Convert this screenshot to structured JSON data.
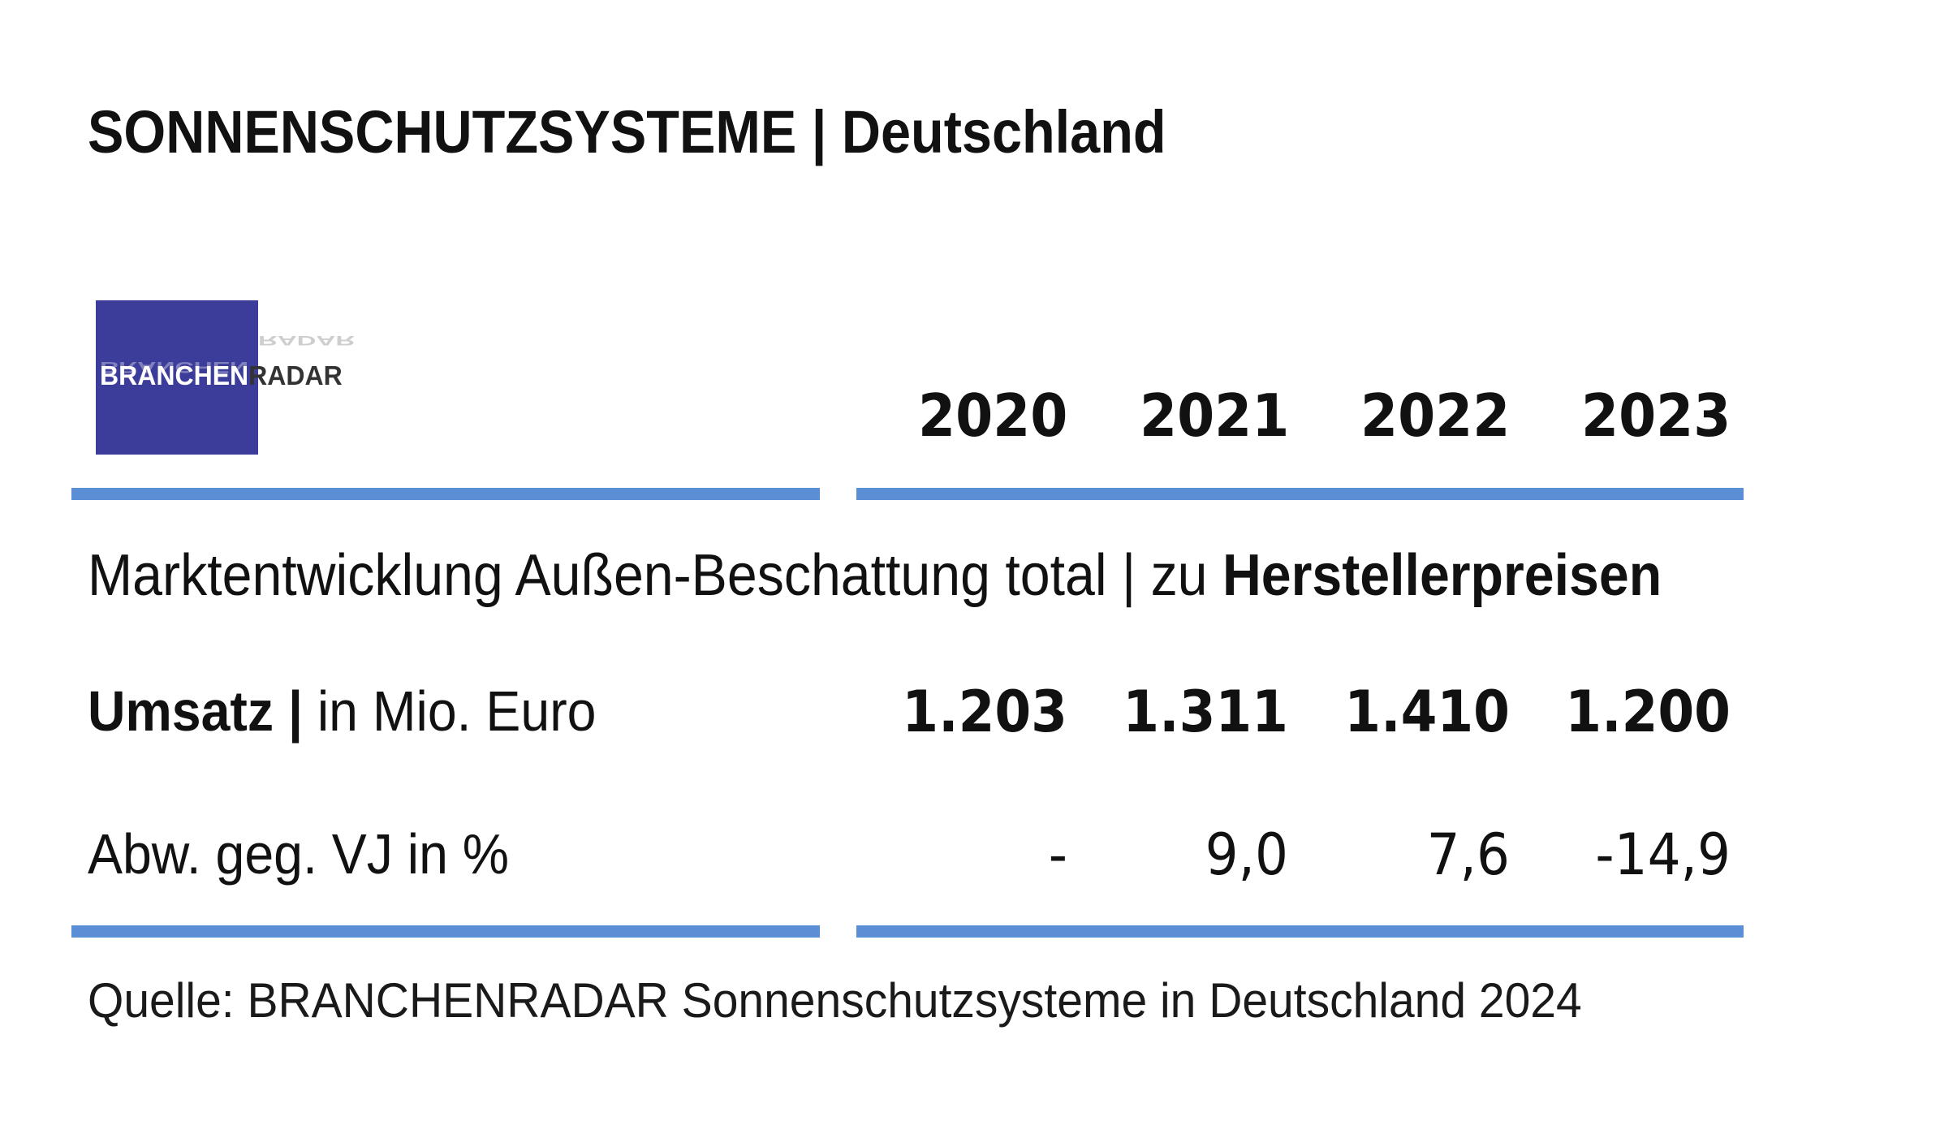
{
  "title": "SONNENSCHUTZSYSTEME | Deutschland",
  "logo": {
    "part1": "BRANCHEN",
    "part2": "RADAR",
    "bg_color": "#3c3c9a"
  },
  "subtitle_normal": "Marktentwicklung Außen-Beschattung total | zu ",
  "subtitle_bold": "Herstellerpreisen",
  "row1_label_bold": "Umsatz |",
  "row1_label_normal": " in Mio. Euro",
  "row2_label": "Abw. geg. VJ in %",
  "source": "Quelle: BRANCHENRADAR Sonnenschutzsysteme in Deutschland 2024",
  "rule_color": "#5a8fd5",
  "chart_data": {
    "type": "table",
    "columns": [
      "2020",
      "2021",
      "2022",
      "2023"
    ],
    "rows": [
      {
        "label": "Umsatz | in Mio. Euro",
        "values": [
          "1.203",
          "1.311",
          "1.410",
          "1.200"
        ]
      },
      {
        "label": "Abw. geg. VJ in %",
        "values": [
          "-",
          "9,0",
          "7,6",
          "-14,9"
        ]
      }
    ]
  }
}
